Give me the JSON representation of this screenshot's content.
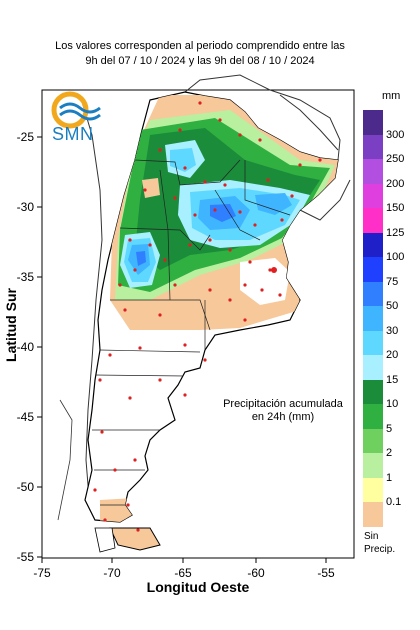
{
  "header": {
    "line1": "Los valores corresponden al periodo comprendido entre las",
    "line2": "9h del 07 / 10 / 2024  y las 9h del 08 / 10 / 2024"
  },
  "logo": {
    "text": "SMN"
  },
  "note": {
    "line1": "Precipitación acumulada",
    "line2": "en 24h (mm)"
  },
  "axes": {
    "xlabel": "Longitud Oeste",
    "ylabel": "Latitud Sur",
    "x_ticks": [
      "-75",
      "-70",
      "-65",
      "-60",
      "-55"
    ],
    "y_ticks": [
      "-25",
      "-30",
      "-35",
      "-40",
      "-45",
      "-50",
      "-55"
    ]
  },
  "legend": {
    "unit": "mm",
    "no_precip_line1": "Sin",
    "no_precip_line2": "Precip.",
    "items": [
      {
        "label": "300",
        "color": "#4b2a8c"
      },
      {
        "label": "250",
        "color": "#7b3fc4"
      },
      {
        "label": "200",
        "color": "#b24fe0"
      },
      {
        "label": "150",
        "color": "#e03fe0"
      },
      {
        "label": "125",
        "color": "#ff2fc8"
      },
      {
        "label": "100",
        "color": "#2020c8"
      },
      {
        "label": "75",
        "color": "#2040ff"
      },
      {
        "label": "50",
        "color": "#2f7fff"
      },
      {
        "label": "30",
        "color": "#3fb4ff"
      },
      {
        "label": "20",
        "color": "#5fd8ff"
      },
      {
        "label": "15",
        "color": "#a8f0ff"
      },
      {
        "label": "10",
        "color": "#1a8c3a"
      },
      {
        "label": "5",
        "color": "#2fb040"
      },
      {
        "label": "2",
        "color": "#6fd060"
      },
      {
        "label": "1",
        "color": "#b8f0a0"
      },
      {
        "label": "0.1",
        "color": "#ffffa0"
      },
      {
        "label": "",
        "color": "#f6c89a"
      }
    ]
  }
}
